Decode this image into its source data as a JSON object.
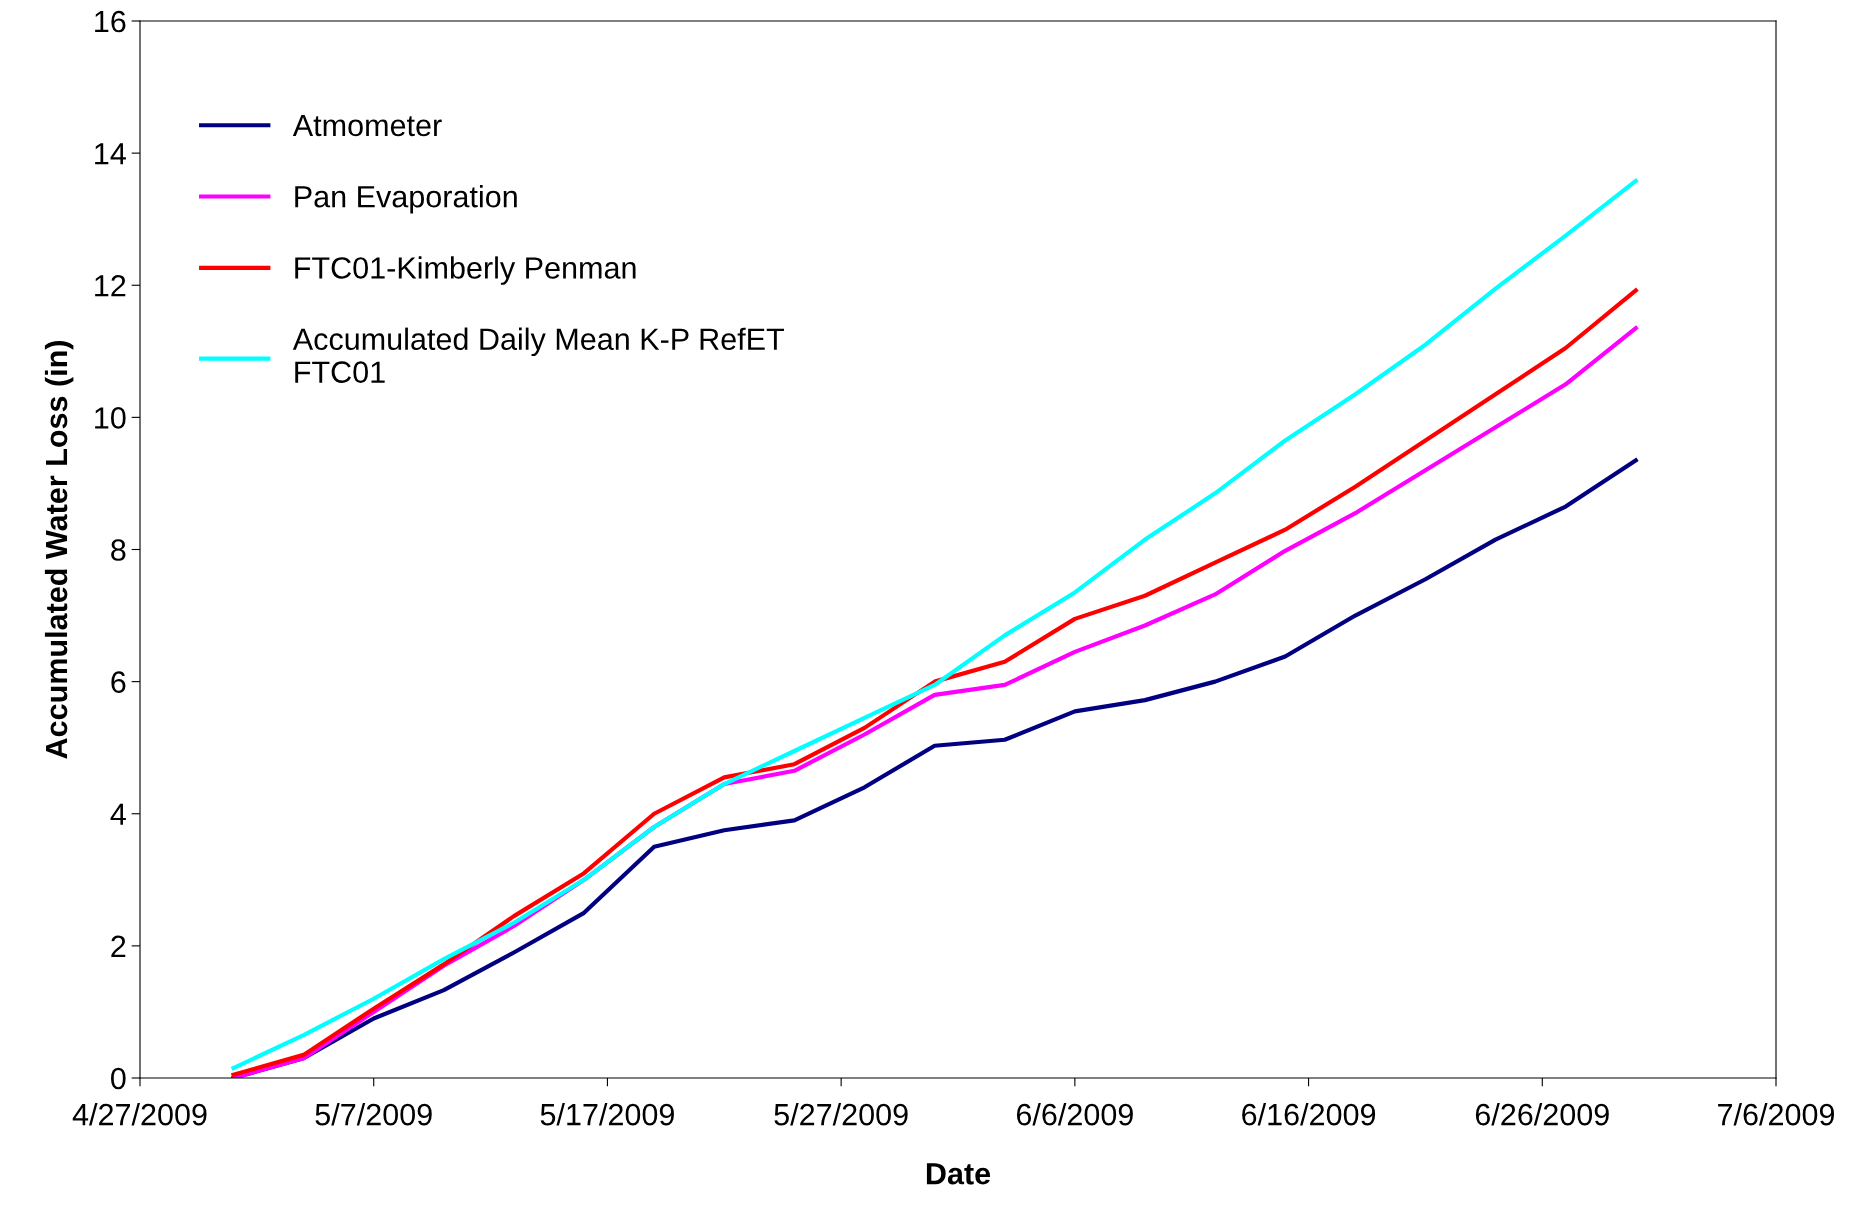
{
  "chart_data": {
    "type": "line",
    "xlabel": "Date",
    "ylabel": "Accumulated Water Loss (in)",
    "x": [
      "2009-05-01",
      "2009-05-04",
      "2009-05-07",
      "2009-05-10",
      "2009-05-13",
      "2009-05-16",
      "2009-05-19",
      "2009-05-22",
      "2009-05-25",
      "2009-05-28",
      "2009-05-31",
      "2009-06-03",
      "2009-06-06",
      "2009-06-09",
      "2009-06-12",
      "2009-06-15",
      "2009-06-18",
      "2009-06-21",
      "2009-06-24",
      "2009-06-27",
      "2009-06-30"
    ],
    "series": [
      {
        "name": "Atmometer",
        "color": "#000080",
        "values": [
          0,
          0.3,
          0.9,
          1.33,
          1.9,
          2.5,
          3.5,
          3.75,
          3.9,
          4.4,
          5.03,
          5.12,
          5.55,
          5.72,
          6.0,
          6.38,
          7.0,
          7.55,
          8.15,
          8.65,
          9.35
        ]
      },
      {
        "name": "Pan Evaporation",
        "color": "#ff00ff",
        "values": [
          0,
          0.3,
          1.0,
          1.7,
          2.3,
          3.0,
          3.8,
          4.45,
          4.65,
          5.2,
          5.8,
          5.95,
          6.45,
          6.85,
          7.32,
          7.98,
          8.55,
          9.2,
          9.85,
          10.5,
          11.35
        ]
      },
      {
        "name": "FTC01-Kimberly Penman",
        "color": "#ff0000",
        "values": [
          0.05,
          0.35,
          1.05,
          1.72,
          2.45,
          3.1,
          4.0,
          4.55,
          4.75,
          5.3,
          6.0,
          6.3,
          6.95,
          7.3,
          7.8,
          8.3,
          8.95,
          9.65,
          10.35,
          11.05,
          11.92
        ]
      },
      {
        "name": "Accumulated Daily Mean K-P RefET\nFTC01",
        "color": "#00ffff",
        "values": [
          0.15,
          0.65,
          1.2,
          1.8,
          2.35,
          3.0,
          3.8,
          4.45,
          4.95,
          5.45,
          5.95,
          6.7,
          7.35,
          8.15,
          8.85,
          9.65,
          10.35,
          11.1,
          11.95,
          12.75,
          13.58
        ]
      }
    ],
    "xlim": [
      "2009-04-27",
      "2009-07-06"
    ],
    "xticks": [
      {
        "value": "2009-04-27",
        "label": "4/27/2009"
      },
      {
        "value": "2009-05-07",
        "label": "5/7/2009"
      },
      {
        "value": "2009-05-17",
        "label": "5/17/2009"
      },
      {
        "value": "2009-05-27",
        "label": "5/27/2009"
      },
      {
        "value": "2009-06-06",
        "label": "6/6/2009"
      },
      {
        "value": "2009-06-16",
        "label": "6/16/2009"
      },
      {
        "value": "2009-06-26",
        "label": "6/26/2009"
      },
      {
        "value": "2009-07-06",
        "label": "7/6/2009"
      }
    ],
    "ylim": [
      0,
      16
    ],
    "yticks": [
      0,
      2,
      4,
      6,
      8,
      10,
      12,
      14,
      16
    ],
    "grid": false,
    "legend": "top left",
    "marker": "none",
    "line_style": "solid"
  }
}
